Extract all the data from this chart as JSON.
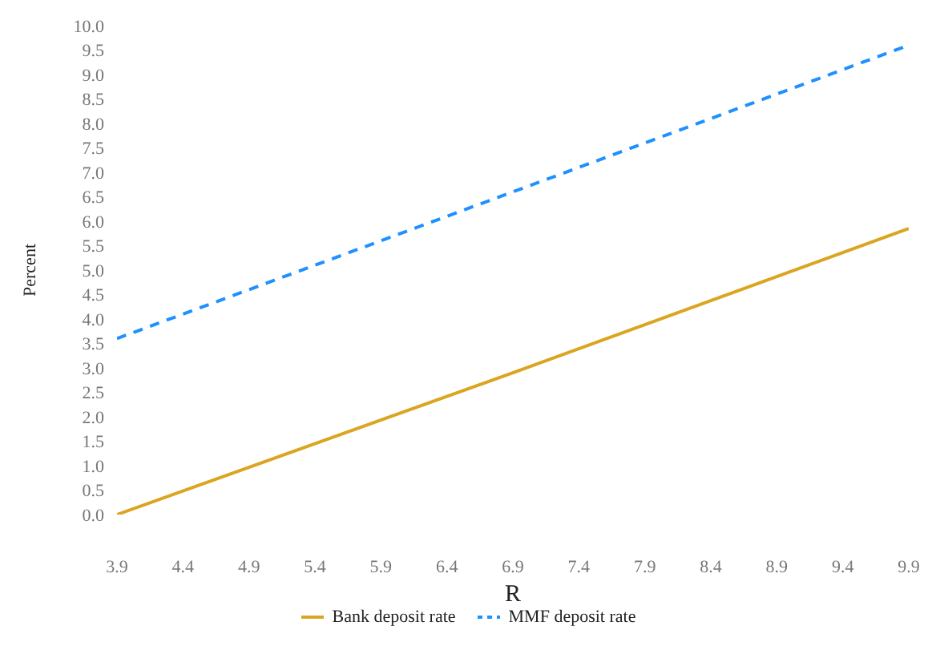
{
  "chart_data": {
    "type": "line",
    "xlabel": "R",
    "ylabel": "Percent",
    "xlim": [
      3.9,
      9.9
    ],
    "xticks": [
      3.9,
      4.4,
      4.9,
      5.4,
      5.9,
      6.4,
      6.9,
      7.4,
      7.9,
      8.4,
      8.9,
      9.4,
      9.9
    ],
    "ylim": [
      0,
      10
    ],
    "yticks": [
      {
        "value": 0,
        "label": "0.0"
      },
      0.5,
      {
        "value": 1,
        "label": "1.0"
      },
      1.5,
      {
        "value": 2,
        "label": "2.0"
      },
      2.5,
      {
        "value": 3,
        "label": "3.0"
      },
      3.5,
      {
        "value": 4,
        "label": "4.0"
      },
      4.5,
      {
        "value": 5,
        "label": "5.0"
      },
      5.5,
      {
        "value": 6,
        "label": "6.0"
      },
      6.5,
      {
        "value": 7,
        "label": "7.0"
      },
      7.5,
      {
        "value": 8,
        "label": "8.0"
      },
      8.5,
      {
        "value": 9,
        "label": "9.0"
      },
      9.5,
      {
        "value": 10,
        "label": "10.0"
      }
    ],
    "grid": false,
    "legend": "bottom",
    "marker": "none",
    "series": [
      {
        "name": "Bank deposit rate",
        "color": "#daa520",
        "x": [
          3.9,
          6.9,
          9.9
        ],
        "values": [
          0.0,
          2.9,
          5.85
        ],
        "line_style": "solid"
      },
      {
        "name": "MMF deposit rate",
        "color": "#1e90ff",
        "x": [
          3.9,
          6.9,
          9.9
        ],
        "values": [
          3.6,
          6.6,
          9.6
        ],
        "line_style": "dashed"
      }
    ]
  }
}
